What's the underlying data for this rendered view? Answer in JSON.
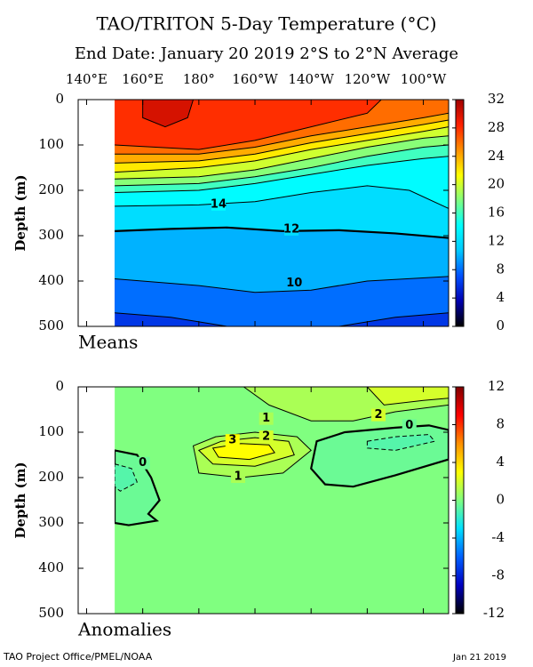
{
  "header": {
    "title": "TAO/TRITON 5-Day Temperature (°C)",
    "subtitle": "End Date: January 20 2019   2°S to 2°N Average"
  },
  "chart_data": [
    {
      "type": "contour",
      "label": "Means",
      "ylabel": "Depth (m)",
      "xlim": [
        137,
        269
      ],
      "ylim": [
        0,
        500
      ],
      "yreverse": true,
      "coverage": [
        150,
        269
      ],
      "xticks": [
        {
          "value": 140,
          "label": "140°E"
        },
        {
          "value": 160,
          "label": "160°E"
        },
        {
          "value": 180,
          "label": "180°"
        },
        {
          "value": 200,
          "label": "160°W"
        },
        {
          "value": 220,
          "label": "140°W"
        },
        {
          "value": 240,
          "label": "120°W"
        },
        {
          "value": 260,
          "label": "100°W"
        }
      ],
      "yticks": [
        0,
        100,
        200,
        300,
        400,
        500
      ],
      "clim": [
        0,
        32
      ],
      "cticks": [
        0,
        4,
        8,
        12,
        16,
        20,
        24,
        28,
        32
      ],
      "colormap": [
        "#000000",
        "#0000b0",
        "#0050ff",
        "#00c8ff",
        "#00ffff",
        "#80ff80",
        "#ffff00",
        "#ff9000",
        "#ff2000",
        "#a00000"
      ],
      "contours": [
        {
          "level": 8,
          "lon": [
            150,
            170,
            190,
            230,
            250,
            269
          ],
          "depth": [
            470,
            480,
            500,
            500,
            480,
            470
          ]
        },
        {
          "level": 10,
          "lon": [
            150,
            180,
            200,
            220,
            240,
            269
          ],
          "depth": [
            395,
            410,
            425,
            420,
            400,
            390
          ],
          "label_at": [
            214,
            405
          ]
        },
        {
          "level": 12,
          "lon": [
            150,
            170,
            190,
            210,
            230,
            250,
            269
          ],
          "depth": [
            290,
            285,
            282,
            290,
            288,
            295,
            305
          ],
          "label_at": [
            213,
            286
          ]
        },
        {
          "level": 14,
          "lon": [
            150,
            180,
            200,
            220,
            240,
            255,
            269
          ],
          "depth": [
            235,
            232,
            225,
            205,
            190,
            200,
            240
          ],
          "label_at": [
            187,
            231
          ]
        },
        {
          "level": 16,
          "lon": [
            150,
            180,
            200,
            220,
            240,
            260,
            269
          ],
          "depth": [
            205,
            200,
            185,
            165,
            145,
            130,
            125
          ]
        },
        {
          "level": 18,
          "lon": [
            150,
            180,
            200,
            220,
            240,
            260,
            269
          ],
          "depth": [
            190,
            185,
            170,
            150,
            125,
            105,
            100
          ]
        },
        {
          "level": 20,
          "lon": [
            150,
            180,
            200,
            220,
            240,
            260,
            269
          ],
          "depth": [
            175,
            170,
            155,
            130,
            105,
            85,
            80
          ]
        },
        {
          "level": 22,
          "lon": [
            150,
            180,
            200,
            220,
            240,
            260,
            269
          ],
          "depth": [
            160,
            150,
            135,
            110,
            90,
            70,
            60
          ]
        },
        {
          "level": 24,
          "lon": [
            150,
            180,
            200,
            220,
            240,
            260,
            269
          ],
          "depth": [
            140,
            135,
            120,
            95,
            75,
            55,
            45
          ]
        },
        {
          "level": 26,
          "lon": [
            150,
            180,
            200,
            220,
            240,
            260,
            269
          ],
          "depth": [
            120,
            120,
            105,
            80,
            60,
            40,
            30
          ]
        },
        {
          "level": 28,
          "lon": [
            150,
            180,
            200,
            220,
            240,
            245
          ],
          "depth": [
            100,
            110,
            90,
            60,
            30,
            0
          ]
        },
        {
          "level": 30,
          "lon": [
            160,
            160,
            168,
            176,
            178
          ],
          "depth": [
            0,
            40,
            60,
            40,
            0
          ]
        }
      ]
    },
    {
      "type": "contour",
      "label": "Anomalies",
      "ylabel": "Depth (m)",
      "xlim": [
        137,
        269
      ],
      "ylim": [
        0,
        500
      ],
      "yreverse": true,
      "coverage": [
        150,
        269
      ],
      "yticks": [
        0,
        100,
        200,
        300,
        400,
        500
      ],
      "clim": [
        -12,
        12
      ],
      "cticks": [
        -12,
        -8,
        -4,
        0,
        4,
        8,
        12
      ],
      "colormap": [
        "#000000",
        "#0000c0",
        "#0060ff",
        "#00e0ff",
        "#80ff80",
        "#ffff00",
        "#ff9000",
        "#ff0000",
        "#800000"
      ],
      "contours": [
        {
          "level": 0,
          "lon": [
            150,
            269
          ],
          "depth": [
            0,
            500
          ],
          "closed": "box"
        },
        {
          "level": 1,
          "lon": [
            196,
            205,
            220,
            235,
            250,
            269,
            269
          ],
          "depth": [
            0,
            40,
            75,
            75,
            55,
            40,
            0
          ],
          "label_at": [
            204,
            70
          ]
        },
        {
          "level": 2,
          "lon": [
            240,
            246,
            260,
            269,
            269
          ],
          "depth": [
            0,
            40,
            30,
            25,
            0
          ],
          "label_at": [
            244,
            62
          ]
        },
        {
          "level": 1,
          "lon": [
            178,
            186,
            200,
            215,
            220,
            210,
            195,
            180
          ],
          "depth": [
            130,
            110,
            100,
            110,
            140,
            190,
            200,
            190
          ],
          "label_at": [
            194,
            198
          ]
        },
        {
          "level": 2,
          "lon": [
            180,
            188,
            200,
            212,
            214,
            200,
            185
          ],
          "depth": [
            140,
            120,
            112,
            120,
            150,
            175,
            170
          ],
          "label_at": [
            204,
            110
          ]
        },
        {
          "level": 3,
          "lon": [
            185,
            195,
            205,
            207,
            198,
            187
          ],
          "depth": [
            135,
            125,
            128,
            145,
            160,
            155
          ],
          "label_at": [
            192,
            118
          ]
        },
        {
          "level": 0,
          "lon": [
            150,
            158,
            163,
            166,
            162,
            165,
            155,
            150
          ],
          "depth": [
            140,
            150,
            200,
            250,
            280,
            295,
            305,
            300
          ],
          "label_at": [
            160,
            168
          ],
          "fill": -0.5
        },
        {
          "level": -1,
          "lon": [
            150,
            156,
            158,
            152,
            150
          ],
          "depth": [
            170,
            180,
            210,
            230,
            220
          ],
          "fill": -1
        },
        {
          "level": 0,
          "lon": [
            222,
            232,
            250,
            262,
            269,
            269,
            250,
            235,
            225,
            220
          ],
          "depth": [
            120,
            100,
            90,
            85,
            95,
            160,
            195,
            220,
            215,
            180
          ],
          "label_at": [
            255,
            85
          ],
          "fill": -0.5
        },
        {
          "level": -1,
          "lon": [
            240,
            250,
            262,
            264,
            250,
            240
          ],
          "depth": [
            120,
            110,
            105,
            120,
            140,
            135
          ],
          "fill": -1
        }
      ]
    }
  ],
  "footer": {
    "left": "TAO Project Office/PMEL/NOAA",
    "right": "Jan 21 2019"
  }
}
